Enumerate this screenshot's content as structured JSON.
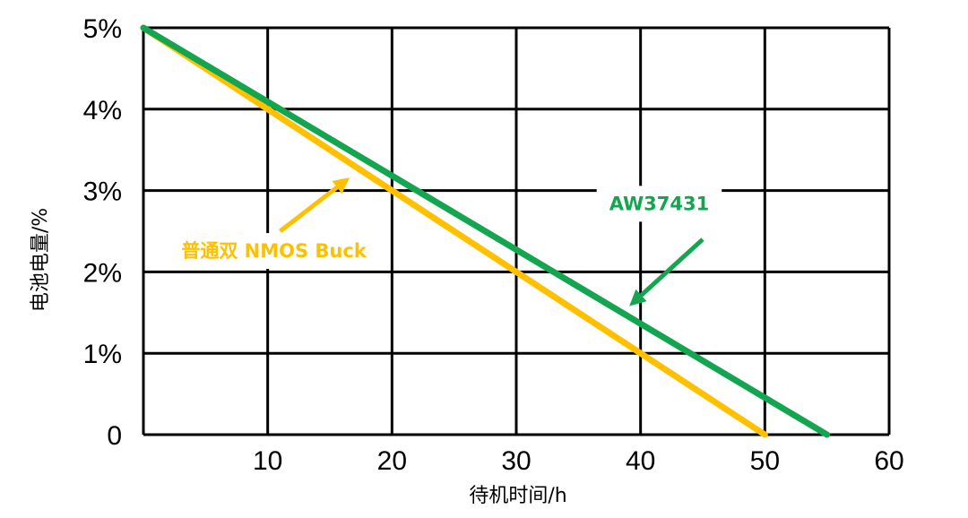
{
  "chart_data": {
    "type": "line",
    "title": "",
    "xlabel": "待机时间/h",
    "ylabel": "电池电量/%",
    "xlim": [
      0,
      60
    ],
    "ylim": [
      0,
      5
    ],
    "x_ticks": [
      10,
      20,
      30,
      40,
      50,
      60
    ],
    "x_tick_labels": [
      "10",
      "20",
      "30",
      "40",
      "50",
      "60"
    ],
    "y_ticks": [
      0,
      1,
      2,
      3,
      4,
      5
    ],
    "y_tick_labels": [
      "0",
      "1%",
      "2%",
      "3%",
      "4%",
      "5%"
    ],
    "grid": true,
    "series": [
      {
        "name": "普通双 NMOS Buck",
        "color": "#FFC000",
        "x": [
          0,
          50
        ],
        "y": [
          5,
          0
        ]
      },
      {
        "name": "AW37431",
        "color": "#14A550",
        "x": [
          0,
          55
        ],
        "y": [
          5,
          0
        ]
      }
    ],
    "annotations": [
      {
        "text": "普通双 NMOS Buck",
        "series": 0,
        "at": [
          10.5,
          2.18
        ],
        "arrow_from": [
          11,
          2.5
        ],
        "arrow_to": [
          16.6,
          3.16
        ]
      },
      {
        "text": "AW37431",
        "series": 1,
        "at": [
          41.5,
          2.76
        ],
        "arrow_from": [
          45,
          2.4
        ],
        "arrow_to": [
          39.1,
          1.58
        ]
      }
    ]
  }
}
